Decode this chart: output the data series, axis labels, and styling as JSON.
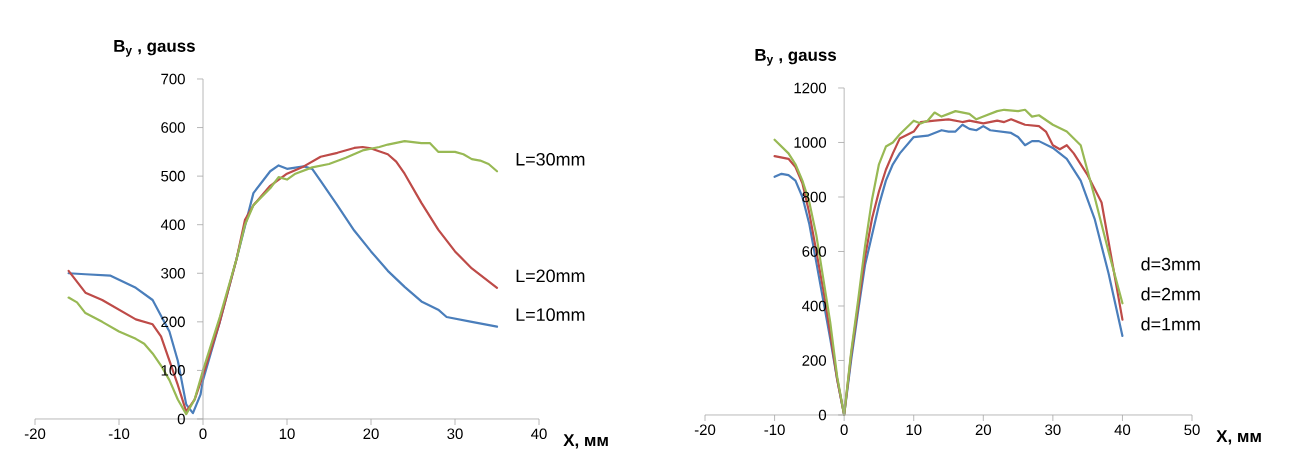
{
  "chart_data": [
    {
      "type": "line",
      "xlabel": "X, мм",
      "ylabel": "B$_{y}$ , gauss",
      "xlim": [
        -20,
        40
      ],
      "ylim": [
        0,
        700
      ],
      "xticks": [
        -20,
        -10,
        0,
        10,
        20,
        30,
        40
      ],
      "yticks": [
        0,
        100,
        200,
        300,
        400,
        500,
        600,
        700
      ],
      "series": [
        {
          "name": "L=10mm",
          "color": "#4a7ebb",
          "x": [
            -16,
            -14,
            -11,
            -8,
            -6,
            -4,
            -3,
            -2,
            -1.2,
            -0.3,
            0,
            2,
            4,
            6,
            8,
            9,
            10,
            12,
            13,
            14,
            16,
            18,
            20,
            22,
            24,
            26,
            28,
            29,
            32,
            35
          ],
          "values": [
            300,
            298,
            295,
            270,
            245,
            180,
            120,
            30,
            12,
            50,
            80,
            200,
            330,
            465,
            510,
            522,
            515,
            520,
            515,
            490,
            440,
            388,
            345,
            305,
            272,
            242,
            225,
            210,
            200,
            190
          ]
        },
        {
          "name": "L=20mm",
          "color": "#be4b48",
          "x": [
            -16,
            -14,
            -12,
            -10,
            -8,
            -6,
            -5,
            -4,
            -3,
            -2,
            -1,
            0,
            2,
            4,
            5,
            6,
            8,
            10,
            12,
            14,
            16,
            18,
            19,
            20,
            22,
            23,
            24,
            26,
            28,
            30,
            32,
            35
          ],
          "values": [
            305,
            260,
            245,
            225,
            205,
            195,
            170,
            120,
            70,
            15,
            40,
            90,
            200,
            330,
            410,
            440,
            480,
            505,
            520,
            540,
            548,
            558,
            560,
            557,
            545,
            530,
            505,
            445,
            390,
            345,
            310,
            270
          ]
        },
        {
          "name": "L=30mm",
          "color": "#98b954",
          "x": [
            -16,
            -15,
            -14,
            -12,
            -10,
            -8,
            -7,
            -6,
            -5,
            -4,
            -3,
            -2,
            -1,
            0,
            2,
            4,
            5,
            6,
            8,
            9,
            10,
            11,
            13,
            15,
            17,
            19,
            21,
            22,
            24,
            26,
            27,
            28,
            30,
            31,
            32,
            33,
            34,
            35
          ],
          "values": [
            250,
            240,
            218,
            200,
            180,
            165,
            155,
            135,
            110,
            80,
            40,
            10,
            40,
            100,
            210,
            330,
            400,
            440,
            475,
            498,
            493,
            505,
            518,
            525,
            538,
            553,
            560,
            565,
            572,
            568,
            568,
            550,
            550,
            545,
            535,
            532,
            525,
            510
          ]
        }
      ]
    },
    {
      "type": "line",
      "xlabel": "X, мм",
      "ylabel": "B$_{y}$ , gauss",
      "xlim": [
        -20,
        50
      ],
      "ylim": [
        0,
        1200
      ],
      "xticks": [
        -20,
        -10,
        0,
        10,
        20,
        30,
        40,
        50
      ],
      "yticks": [
        0,
        200,
        400,
        600,
        800,
        1000,
        1200
      ],
      "series": [
        {
          "name": "d=1mm",
          "color": "#4a7ebb",
          "x": [
            -10,
            -9,
            -8,
            -7,
            -6,
            -5,
            -4,
            -3,
            -2,
            -1,
            0,
            1,
            2,
            3,
            4,
            5,
            6,
            7,
            8,
            10,
            12,
            14,
            15,
            16,
            17,
            18,
            19,
            20,
            21,
            24,
            25,
            26,
            27,
            28,
            30,
            32,
            34,
            36,
            38,
            40
          ],
          "values": [
            874,
            885,
            880,
            860,
            800,
            700,
            560,
            420,
            280,
            130,
            0,
            200,
            380,
            550,
            660,
            770,
            860,
            920,
            960,
            1020,
            1025,
            1045,
            1040,
            1040,
            1065,
            1050,
            1045,
            1060,
            1045,
            1035,
            1020,
            990,
            1005,
            1005,
            980,
            940,
            860,
            720,
            520,
            290
          ]
        },
        {
          "name": "d=2mm",
          "color": "#be4b48",
          "x": [
            -10,
            -8,
            -7,
            -6,
            -5,
            -4,
            -3,
            -2,
            -1,
            0,
            1,
            2,
            3,
            4,
            5,
            6,
            7,
            8,
            10,
            11,
            13,
            15,
            17,
            18,
            20,
            22,
            23,
            24,
            26,
            28,
            29,
            30,
            31,
            32,
            33,
            35,
            37,
            40
          ],
          "values": [
            950,
            940,
            910,
            850,
            740,
            600,
            460,
            300,
            130,
            0,
            220,
            400,
            580,
            720,
            820,
            900,
            960,
            1015,
            1040,
            1075,
            1080,
            1085,
            1075,
            1080,
            1070,
            1080,
            1075,
            1085,
            1065,
            1060,
            1040,
            990,
            975,
            990,
            960,
            880,
            780,
            350
          ]
        },
        {
          "name": "d=3mm",
          "color": "#98b954",
          "x": [
            -10,
            -8,
            -7,
            -6,
            -5,
            -4,
            -3,
            -2,
            -1,
            0,
            1,
            2,
            3,
            4,
            5,
            6,
            7,
            8,
            10,
            11,
            12,
            13,
            14,
            15,
            16,
            17,
            18,
            19,
            20,
            22,
            23,
            25,
            26,
            27,
            28,
            30,
            32,
            34,
            36,
            38,
            40
          ],
          "values": [
            1010,
            960,
            920,
            860,
            780,
            660,
            500,
            340,
            140,
            0,
            230,
            420,
            620,
            790,
            920,
            985,
            1000,
            1030,
            1080,
            1070,
            1080,
            1110,
            1095,
            1105,
            1115,
            1110,
            1105,
            1085,
            1095,
            1115,
            1120,
            1115,
            1120,
            1095,
            1100,
            1065,
            1040,
            990,
            800,
            600,
            410
          ]
        }
      ]
    }
  ]
}
